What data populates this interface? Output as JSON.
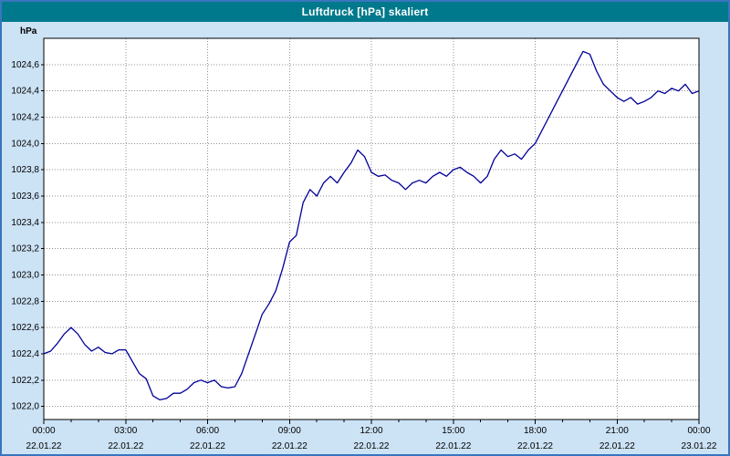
{
  "window": {
    "title": "Luftdruck [hPa] skaliert"
  },
  "colors": {
    "titlebar": "#00798C",
    "window_background": "#CCE2F5",
    "window_border": "#3876BE",
    "line": "#000099",
    "grid": "#909090"
  },
  "chart_data": {
    "type": "line",
    "title": "Luftdruck [hPa] skaliert",
    "xlabel": "",
    "ylabel": "hPa",
    "grid": true,
    "legend": "none",
    "ylim": [
      1021.9,
      1024.8
    ],
    "xlim_hours": [
      0,
      24
    ],
    "y_ticks": [
      {
        "value": 1022.0,
        "label": "1022,0"
      },
      {
        "value": 1022.2,
        "label": "1022,2"
      },
      {
        "value": 1022.4,
        "label": "1022,4"
      },
      {
        "value": 1022.6,
        "label": "1022,6"
      },
      {
        "value": 1022.8,
        "label": "1022,8"
      },
      {
        "value": 1023.0,
        "label": "1023,0"
      },
      {
        "value": 1023.2,
        "label": "1023,2"
      },
      {
        "value": 1023.4,
        "label": "1023,4"
      },
      {
        "value": 1023.6,
        "label": "1023,6"
      },
      {
        "value": 1023.8,
        "label": "1023,8"
      },
      {
        "value": 1024.0,
        "label": "1024,0"
      },
      {
        "value": 1024.2,
        "label": "1024,2"
      },
      {
        "value": 1024.4,
        "label": "1024,4"
      },
      {
        "value": 1024.6,
        "label": "1024,6"
      }
    ],
    "x_ticks": [
      {
        "hour": 0,
        "time": "00:00",
        "date": "22.01.22"
      },
      {
        "hour": 3,
        "time": "03:00",
        "date": "22.01.22"
      },
      {
        "hour": 6,
        "time": "06:00",
        "date": "22.01.22"
      },
      {
        "hour": 9,
        "time": "09:00",
        "date": "22.01.22"
      },
      {
        "hour": 12,
        "time": "12:00",
        "date": "22.01.22"
      },
      {
        "hour": 15,
        "time": "15:00",
        "date": "22.01.22"
      },
      {
        "hour": 18,
        "time": "18:00",
        "date": "22.01.22"
      },
      {
        "hour": 21,
        "time": "21:00",
        "date": "22.01.22"
      },
      {
        "hour": 24,
        "time": "00:00",
        "date": "23.01.22"
      }
    ],
    "series": [
      {
        "name": "Luftdruck",
        "x_start_hour": 0,
        "x_step_hours": 0.25,
        "values": [
          1022.4,
          1022.42,
          1022.48,
          1022.55,
          1022.6,
          1022.55,
          1022.47,
          1022.42,
          1022.45,
          1022.41,
          1022.4,
          1022.43,
          1022.43,
          1022.34,
          1022.25,
          1022.21,
          1022.08,
          1022.05,
          1022.06,
          1022.1,
          1022.1,
          1022.13,
          1022.18,
          1022.2,
          1022.18,
          1022.2,
          1022.15,
          1022.14,
          1022.15,
          1022.25,
          1022.4,
          1022.55,
          1022.7,
          1022.78,
          1022.88,
          1023.05,
          1023.25,
          1023.3,
          1023.55,
          1023.65,
          1023.6,
          1023.7,
          1023.75,
          1023.7,
          1023.78,
          1023.85,
          1023.95,
          1023.9,
          1023.78,
          1023.75,
          1023.76,
          1023.72,
          1023.7,
          1023.65,
          1023.7,
          1023.72,
          1023.7,
          1023.75,
          1023.78,
          1023.75,
          1023.8,
          1023.82,
          1023.78,
          1023.75,
          1023.7,
          1023.75,
          1023.88,
          1023.95,
          1023.9,
          1023.92,
          1023.88,
          1023.95,
          1024.0,
          1024.1,
          1024.2,
          1024.3,
          1024.4,
          1024.5,
          1024.6,
          1024.7,
          1024.68,
          1024.55,
          1024.45,
          1024.4,
          1024.35,
          1024.32,
          1024.35,
          1024.3,
          1024.32,
          1024.35,
          1024.4,
          1024.38,
          1024.42,
          1024.4,
          1024.45,
          1024.38,
          1024.4
        ]
      }
    ]
  }
}
